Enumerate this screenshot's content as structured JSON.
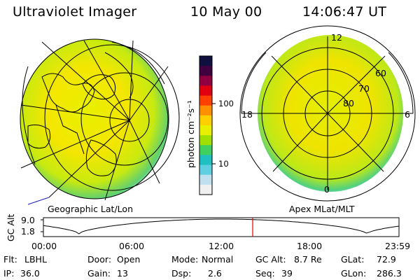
{
  "header": {
    "instrument": "Ultraviolet Imager",
    "date": "10 May 00",
    "time": "14:06:47 UT"
  },
  "left_panel": {
    "label": "Geographic Lat/Lon"
  },
  "right_panel": {
    "label": "Apex MLat/MLT",
    "mlt_labels": [
      "12",
      "18",
      "6",
      "0"
    ],
    "lat_labels": [
      "60",
      "70",
      "80"
    ]
  },
  "colorbar": {
    "title": "photon cm⁻²s⁻¹",
    "ticks": [
      "100",
      "10"
    ],
    "colors": [
      "#101040",
      "#400040",
      "#900040",
      "#e00010",
      "#ff4000",
      "#ff9000",
      "#ffd000",
      "#e8f000",
      "#a0e000",
      "#40d060",
      "#20c0c0",
      "#60d0e0",
      "#c0e0f0",
      "#f0f0f0"
    ]
  },
  "altitude_plot": {
    "ylabel": "GC Alt",
    "yticks": [
      "9.0",
      "1.8"
    ],
    "xticks": [
      "00:00",
      "06:00",
      "12:00",
      "18:00",
      "23:59"
    ],
    "marker_time": "14:07"
  },
  "info": {
    "row1": [
      {
        "label": "Flt:",
        "value": "LBHL"
      },
      {
        "label": "Door:",
        "value": "Open"
      },
      {
        "label": "Mode:",
        "value": "Normal"
      },
      {
        "label": "GC Alt:",
        "value": "8.7 Re"
      },
      {
        "label": "GLat:",
        "value": "72.9"
      }
    ],
    "row2": [
      {
        "label": "IP:",
        "value": "36.0"
      },
      {
        "label": "Gain:",
        "value": "13"
      },
      {
        "label": "Dsp:",
        "value": "2.6"
      },
      {
        "label": "Seq:",
        "value": "39"
      },
      {
        "label": "GLon:",
        "value": "286.3"
      }
    ]
  }
}
